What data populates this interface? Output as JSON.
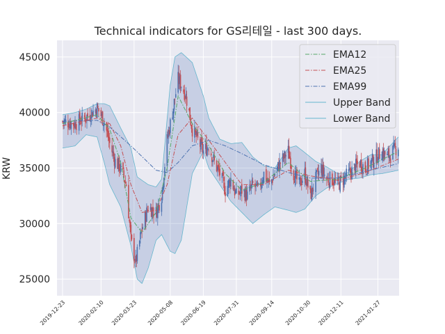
{
  "chart_data": {
    "type": "candlestick",
    "title": "Technical indicators for GS리테일 - last 300 days.",
    "xlabel": "",
    "ylabel": "KRW",
    "ylim": [
      23500,
      46500
    ],
    "yticks": [
      25000,
      30000,
      35000,
      40000,
      45000
    ],
    "ytick_labels": [
      "25000",
      "30000",
      "35000",
      "40000",
      "45000"
    ],
    "x_range": [
      "2019-12-16",
      "2021-02-23"
    ],
    "xtick_dates": [
      "2019-12-23",
      "2020-02-10",
      "2020-03-23",
      "2020-05-08",
      "2020-06-19",
      "2020-07-31",
      "2020-09-14",
      "2020-10-30",
      "2020-12-11",
      "2021-01-27"
    ],
    "xtick_labels": [
      "2019-12-23",
      "2020-02-10",
      "2020-03-23",
      "2020-05-08",
      "2020-06-19",
      "2020-07-31",
      "2020-09-14",
      "2020-10-30",
      "2020-12-11",
      "2021-01-27"
    ],
    "grid": true,
    "legend_position": "top-right",
    "legend": [
      "EMA12",
      "EMA25",
      "EMA99",
      "Upper Band",
      "Lower Band"
    ],
    "colors": {
      "background": "#eaeaf2",
      "grid": "#ffffff",
      "up_candle": "#4c72b0",
      "down_candle": "#c44e52",
      "ema12": "#55a868",
      "ema25": "#c44e52",
      "ema99": "#4c72b0",
      "band_line": "#64b5cd",
      "band_fill": "#4c72b0"
    },
    "close_anchors": {
      "x": [
        "2019-12-23",
        "2020-01-08",
        "2020-01-22",
        "2020-02-05",
        "2020-02-14",
        "2020-02-21",
        "2020-02-28",
        "2020-03-06",
        "2020-03-13",
        "2020-03-19",
        "2020-03-25",
        "2020-04-02",
        "2020-04-10",
        "2020-04-20",
        "2020-04-27",
        "2020-05-04",
        "2020-05-12",
        "2020-05-18",
        "2020-05-22",
        "2020-05-28",
        "2020-06-05",
        "2020-06-12",
        "2020-06-19",
        "2020-06-26",
        "2020-07-03",
        "2020-07-10",
        "2020-07-17",
        "2020-07-24",
        "2020-07-31",
        "2020-08-07",
        "2020-08-14",
        "2020-08-21",
        "2020-08-28",
        "2020-09-04",
        "2020-09-11",
        "2020-09-18",
        "2020-09-25",
        "2020-10-05",
        "2020-10-12",
        "2020-10-19",
        "2020-10-26",
        "2020-11-02",
        "2020-11-09",
        "2020-11-16",
        "2020-11-23",
        "2020-11-30",
        "2020-12-07",
        "2020-12-14",
        "2020-12-21",
        "2020-12-28",
        "2021-01-04",
        "2021-01-11",
        "2021-01-18",
        "2021-01-25",
        "2021-02-01",
        "2021-02-08",
        "2021-02-15",
        "2021-02-22"
      ],
      "y": [
        39200,
        39000,
        39600,
        40400,
        39200,
        37200,
        35600,
        35000,
        33500,
        28500,
        26500,
        29500,
        31500,
        31000,
        32500,
        37500,
        40500,
        43000,
        42500,
        41500,
        38500,
        37500,
        36500,
        37000,
        35500,
        34500,
        33000,
        34000,
        32500,
        33000,
        32500,
        33500,
        33000,
        34500,
        33500,
        34500,
        35500,
        36500,
        34500,
        33500,
        34500,
        32500,
        34000,
        35000,
        34000,
        34000,
        33500,
        34000,
        34500,
        35000,
        35500,
        35000,
        35500,
        36000,
        36500,
        36000,
        36500,
        37000
      ]
    },
    "ema12_anchors": {
      "x": [
        "2019-12-23",
        "2020-02-05",
        "2020-02-21",
        "2020-03-06",
        "2020-03-19",
        "2020-04-02",
        "2020-04-20",
        "2020-05-04",
        "2020-05-18",
        "2020-06-05",
        "2020-06-26",
        "2020-07-17",
        "2020-08-07",
        "2020-09-04",
        "2020-10-05",
        "2020-11-02",
        "2020-12-07",
        "2021-01-11",
        "2021-02-22"
      ],
      "y": [
        39000,
        39800,
        38500,
        35500,
        30500,
        29200,
        31000,
        35000,
        41500,
        39000,
        37000,
        34500,
        33000,
        33700,
        35500,
        33800,
        34000,
        35000,
        36500
      ]
    },
    "ema25_anchors": {
      "x": [
        "2019-12-23",
        "2020-02-05",
        "2020-02-21",
        "2020-03-06",
        "2020-03-19",
        "2020-04-02",
        "2020-04-20",
        "2020-05-04",
        "2020-05-18",
        "2020-06-05",
        "2020-06-26",
        "2020-07-17",
        "2020-08-07",
        "2020-09-04",
        "2020-10-05",
        "2020-11-02",
        "2020-12-07",
        "2021-01-11",
        "2021-02-22"
      ],
      "y": [
        38800,
        39500,
        39000,
        37000,
        33500,
        31000,
        31200,
        33500,
        38000,
        39500,
        37500,
        35500,
        33500,
        33500,
        34800,
        34300,
        33900,
        34600,
        35800
      ]
    },
    "ema99_anchors": {
      "x": [
        "2019-12-23",
        "2020-02-05",
        "2020-02-21",
        "2020-03-19",
        "2020-04-20",
        "2020-05-04",
        "2020-05-18",
        "2020-06-05",
        "2020-06-26",
        "2020-07-17",
        "2020-08-07",
        "2020-09-04",
        "2020-10-05",
        "2020-11-02",
        "2020-12-07",
        "2021-01-11",
        "2021-02-22"
      ],
      "y": [
        39200,
        39300,
        38700,
        37000,
        34800,
        34600,
        35500,
        37000,
        37500,
        37000,
        36300,
        35300,
        34600,
        34100,
        34100,
        34700,
        35400
      ]
    },
    "upper_band_anchors": {
      "x": [
        "2019-12-23",
        "2020-01-08",
        "2020-01-22",
        "2020-02-05",
        "2020-02-14",
        "2020-02-21",
        "2020-03-06",
        "2020-03-19",
        "2020-03-27",
        "2020-04-10",
        "2020-04-20",
        "2020-04-27",
        "2020-05-08",
        "2020-05-14",
        "2020-05-22",
        "2020-06-05",
        "2020-06-19",
        "2020-06-26",
        "2020-07-10",
        "2020-07-24",
        "2020-08-07",
        "2020-08-21",
        "2020-09-04",
        "2020-09-18",
        "2020-10-05",
        "2020-10-15",
        "2020-10-26",
        "2020-11-09",
        "2020-11-23",
        "2020-12-07",
        "2020-12-21",
        "2021-01-04",
        "2021-01-18",
        "2021-02-01",
        "2021-02-22"
      ],
      "y": [
        39800,
        40000,
        40300,
        40800,
        40800,
        40600,
        38600,
        36800,
        34200,
        33500,
        33300,
        34000,
        42500,
        45000,
        45400,
        44500,
        41500,
        39500,
        37600,
        37200,
        37300,
        36000,
        35200,
        35000,
        36800,
        37000,
        36400,
        35600,
        35100,
        34500,
        34600,
        35600,
        36200,
        36200,
        37800
      ]
    },
    "lower_band_anchors": {
      "x": [
        "2019-12-23",
        "2020-01-08",
        "2020-01-22",
        "2020-02-05",
        "2020-02-14",
        "2020-02-21",
        "2020-03-06",
        "2020-03-19",
        "2020-03-27",
        "2020-04-02",
        "2020-04-10",
        "2020-04-20",
        "2020-04-27",
        "2020-05-08",
        "2020-05-14",
        "2020-05-22",
        "2020-06-05",
        "2020-06-19",
        "2020-06-26",
        "2020-07-10",
        "2020-07-24",
        "2020-08-07",
        "2020-08-21",
        "2020-09-04",
        "2020-09-18",
        "2020-10-05",
        "2020-10-15",
        "2020-10-26",
        "2020-11-09",
        "2020-11-23",
        "2020-12-07",
        "2020-12-21",
        "2021-01-04",
        "2021-01-18",
        "2021-02-01",
        "2021-02-22"
      ],
      "y": [
        36800,
        37000,
        38000,
        37800,
        35500,
        33500,
        31500,
        28000,
        25000,
        24600,
        26000,
        28500,
        29000,
        27500,
        27300,
        28500,
        34500,
        36500,
        35000,
        33500,
        32000,
        31000,
        30000,
        30800,
        31500,
        31200,
        31000,
        31300,
        32500,
        33200,
        33600,
        34000,
        34100,
        34400,
        34500,
        34800
      ]
    }
  }
}
